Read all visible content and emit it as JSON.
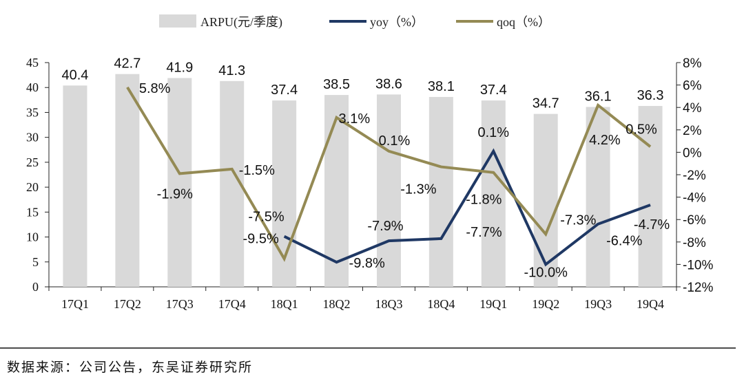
{
  "chart_data": {
    "type": "bar+line",
    "categories": [
      "17Q1",
      "17Q2",
      "17Q3",
      "17Q4",
      "18Q1",
      "18Q2",
      "18Q3",
      "18Q4",
      "19Q1",
      "19Q2",
      "19Q3",
      "19Q4"
    ],
    "bar_series": {
      "name": "ARPU(元/季度)",
      "values": [
        40.4,
        42.7,
        41.9,
        41.3,
        37.4,
        38.5,
        38.6,
        38.1,
        37.4,
        34.7,
        36.1,
        36.3
      ],
      "labels": [
        "40.4",
        "42.7",
        "41.9",
        "41.3",
        "37.4",
        "38.5",
        "38.6",
        "38.1",
        "37.4",
        "34.7",
        "36.1",
        "36.3"
      ],
      "color": "#d9d9d9"
    },
    "line_series": [
      {
        "name": "yoy（%）",
        "values": [
          null,
          null,
          null,
          null,
          -7.5,
          -9.8,
          -7.9,
          -7.7,
          0.1,
          -10.0,
          -6.4,
          -4.7
        ],
        "labels": [
          "",
          "",
          "",
          "",
          "-7.5%",
          "-9.8%",
          "-7.9%",
          "-7.7%",
          "0.1%",
          "-10.0%",
          "-6.4%",
          "-4.7%"
        ],
        "color": "#1f3864"
      },
      {
        "name": "qoq（%）",
        "values": [
          null,
          5.8,
          -1.9,
          -1.5,
          -9.5,
          3.1,
          0.1,
          -1.3,
          -1.8,
          -7.3,
          4.2,
          0.5
        ],
        "labels": [
          "",
          "5.8%",
          "-1.9%",
          "-1.5%",
          "-9.5%",
          "3.1%",
          "0.1%",
          "-1.3%",
          "-1.8%",
          "-7.3%",
          "4.2%",
          "0.5%"
        ],
        "color": "#948a54"
      }
    ],
    "y_left": {
      "ylim": [
        0,
        45
      ],
      "ticks": [
        0,
        5,
        10,
        15,
        20,
        25,
        30,
        35,
        40,
        45
      ]
    },
    "y_right": {
      "ylim": [
        -12,
        8
      ],
      "ticks": [
        -12,
        -10,
        -8,
        -6,
        -4,
        -2,
        0,
        2,
        4,
        6,
        8
      ],
      "tick_labels": [
        "-12%",
        "-10%",
        "-8%",
        "-6%",
        "-4%",
        "-2%",
        "0%",
        "2%",
        "4%",
        "6%",
        "8%"
      ]
    },
    "legend_position": "top"
  },
  "source_note": "数据来源：公司公告，东吴证券研究所"
}
